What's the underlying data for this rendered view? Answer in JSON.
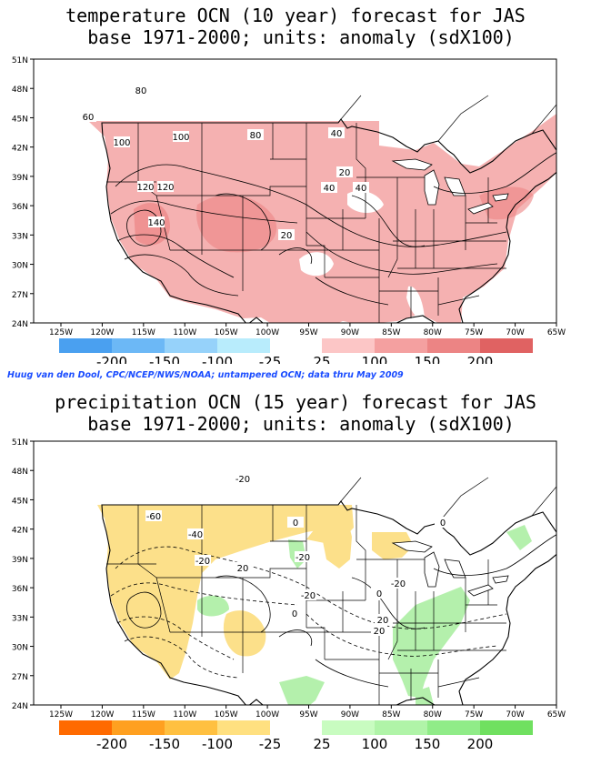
{
  "temperature": {
    "title_line1": "temperature OCN (10 year) forecast for JAS",
    "title_line2": " base 1971-2000; units: anomaly (sdX100)",
    "lat_labels": [
      "51N",
      "48N",
      "45N",
      "42N",
      "39N",
      "36N",
      "33N",
      "30N",
      "27N",
      "24N"
    ],
    "lon_labels": [
      "125W",
      "120W",
      "115W",
      "110W",
      "105W",
      "100W",
      "95W",
      "90W",
      "85W",
      "80W",
      "75W",
      "70W",
      "65W"
    ],
    "contour_labels": [
      "80",
      "60",
      "100",
      "100",
      "80",
      "40",
      "20",
      "40",
      "40",
      "120",
      "120",
      "140",
      "20"
    ],
    "legend_labels": [
      "-200",
      "-150",
      "-100",
      "-25",
      "25",
      "100",
      "150",
      "200"
    ],
    "negative_colors": [
      "#4aa0f0",
      "#6cb8f6",
      "#96d2fa",
      "#b8ecfc"
    ],
    "positive_colors": [
      "#fcc6c6",
      "#f4a0a0",
      "#ec8484",
      "#e06262"
    ],
    "shade_color": "#f4a8a8"
  },
  "credit": "Huug van den Dool, CPC/NCEP/NWS/NOAA; untampered OCN; data thru May 2009",
  "precipitation": {
    "title_line1": "precipitation OCN (15 year) forecast for JAS",
    "title_line2": " base 1971-2000; units: anomaly (sdX100)",
    "lat_labels": [
      "51N",
      "48N",
      "45N",
      "42N",
      "39N",
      "36N",
      "33N",
      "30N",
      "27N",
      "24N"
    ],
    "lon_labels": [
      "125W",
      "120W",
      "115W",
      "110W",
      "105W",
      "100W",
      "95W",
      "90W",
      "85W",
      "80W",
      "75W",
      "70W",
      "65W"
    ],
    "contour_labels": [
      "-20",
      "-60",
      "-40",
      "0",
      "-20",
      "-20",
      "20",
      "-20",
      "0",
      "-20",
      "20",
      "0",
      "20",
      "0"
    ],
    "legend_labels": [
      "-200",
      "-150",
      "-100",
      "-25",
      "25",
      "100",
      "150",
      "200"
    ],
    "negative_colors": [
      "#ff6a00",
      "#ffa020",
      "#ffc040",
      "#ffe080"
    ],
    "positive_colors": [
      "#c8fcc0",
      "#b0f4a8",
      "#90ec88",
      "#70e060"
    ],
    "dry_color": "#fce08a",
    "wet_color": "#b4f0ac"
  }
}
